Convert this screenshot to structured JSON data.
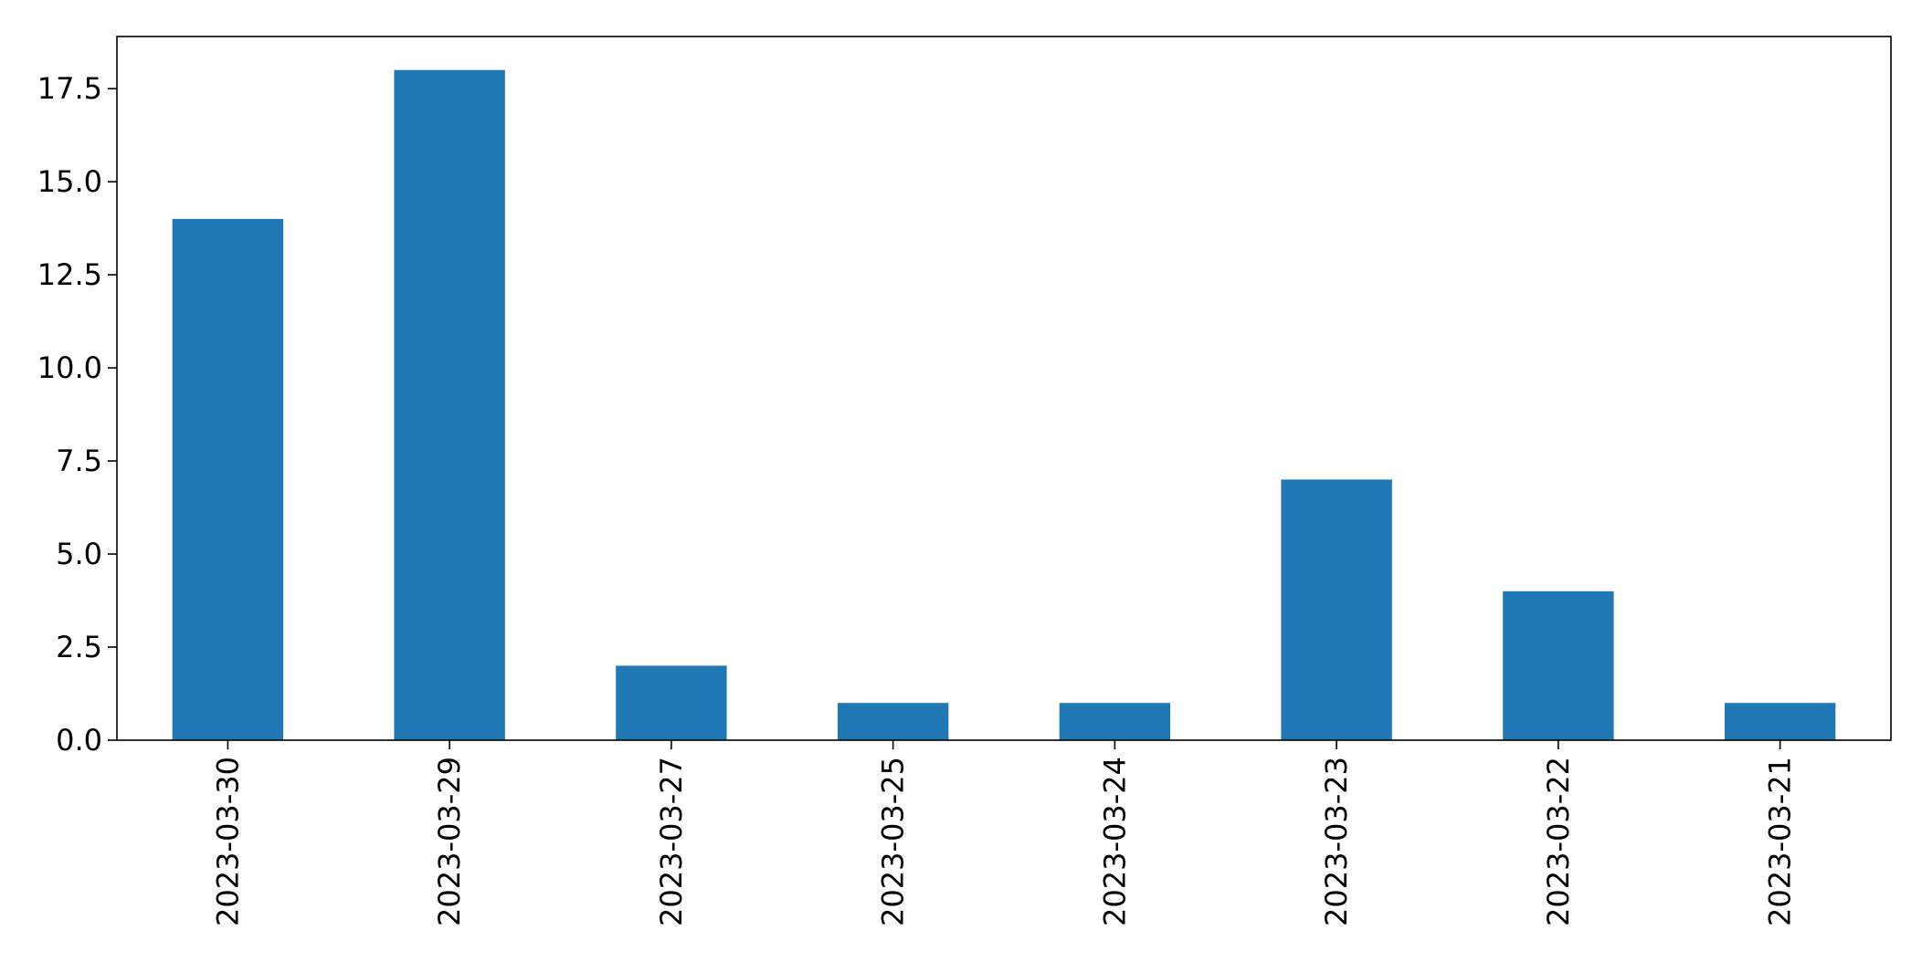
{
  "chart_data": {
    "type": "bar",
    "title": "",
    "xlabel": "",
    "ylabel": "",
    "categories": [
      "2023-03-30",
      "2023-03-29",
      "2023-03-27",
      "2023-03-25",
      "2023-03-24",
      "2023-03-23",
      "2023-03-22",
      "2023-03-21"
    ],
    "values": [
      14,
      18,
      2,
      1,
      1,
      7,
      4,
      1
    ],
    "ylim": [
      0,
      18.9
    ],
    "yticks": [
      0.0,
      2.5,
      5.0,
      7.5,
      10.0,
      12.5,
      15.0,
      17.5
    ],
    "ytick_labels": [
      "0.0",
      "2.5",
      "5.0",
      "7.5",
      "10.0",
      "12.5",
      "15.0",
      "17.5"
    ],
    "grid": false,
    "legend": "none",
    "bar_color": "#1f77b4"
  }
}
